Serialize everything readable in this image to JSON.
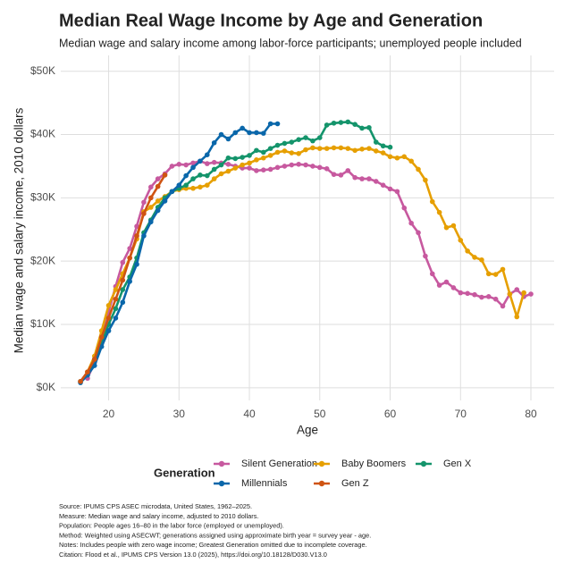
{
  "chart_data": {
    "type": "line",
    "title": "Median Real Wage Income by Age and Generation",
    "subtitle": "Median wage and salary income among labor-force participants; unemployed people included",
    "x_label": "Age",
    "y_label": "Median wage and salary income, 2010 dollars",
    "legend_title": "Generation",
    "xlim": [
      13.2,
      83.3
    ],
    "ylim": [
      -2000,
      52500
    ],
    "xticks": [
      20,
      30,
      40,
      50,
      60,
      70,
      80
    ],
    "yticks": [
      {
        "value": 0,
        "label": "$0K"
      },
      {
        "value": 10000,
        "label": "$10K"
      },
      {
        "value": 20000,
        "label": "$20K"
      },
      {
        "value": 30000,
        "label": "$30K"
      },
      {
        "value": 40000,
        "label": "$40K"
      },
      {
        "value": 50000,
        "label": "$50K"
      }
    ],
    "grid": true,
    "series": [
      {
        "name": "Silent Generation",
        "color": "#c7599f",
        "x": [
          17,
          18,
          19,
          20,
          21,
          22,
          23,
          24,
          25,
          26,
          27,
          28,
          29,
          30,
          31,
          32,
          33,
          34,
          35,
          36,
          37,
          38,
          39,
          40,
          41,
          42,
          43,
          44,
          45,
          46,
          47,
          48,
          49,
          50,
          51,
          52,
          53,
          54,
          55,
          56,
          57,
          58,
          59,
          60,
          61,
          62,
          63,
          64,
          65,
          66,
          67,
          68,
          69,
          70,
          71,
          72,
          73,
          74,
          75,
          76,
          77,
          78,
          79,
          80
        ],
        "values": [
          1500,
          4000,
          8000,
          12000,
          16000,
          19800,
          22000,
          25500,
          29300,
          31700,
          33000,
          33800,
          35000,
          35300,
          35200,
          35500,
          35800,
          35400,
          35600,
          35500,
          35300,
          35000,
          34700,
          34700,
          34300,
          34400,
          34500,
          34800,
          35000,
          35200,
          35300,
          35200,
          35000,
          34800,
          34600,
          33700,
          33600,
          34300,
          33200,
          33000,
          33000,
          32600,
          32000,
          31400,
          31000,
          28400,
          26000,
          24500,
          20800,
          18000,
          16200,
          16700,
          15800,
          15000,
          14900,
          14700,
          14300,
          14400,
          14000,
          12900,
          14800,
          15500,
          14400,
          14800
        ]
      },
      {
        "name": "Baby Boomers",
        "color": "#e69f00",
        "x": [
          17,
          18,
          19,
          20,
          21,
          22,
          23,
          24,
          25,
          26,
          27,
          28,
          29,
          30,
          31,
          32,
          33,
          34,
          35,
          36,
          37,
          38,
          39,
          40,
          41,
          42,
          43,
          44,
          45,
          46,
          47,
          48,
          49,
          50,
          51,
          52,
          53,
          54,
          55,
          56,
          57,
          58,
          59,
          60,
          61,
          62,
          63,
          64,
          65,
          66,
          67,
          68,
          69,
          70,
          71,
          72,
          73,
          74,
          75,
          76,
          77,
          78,
          79
        ],
        "values": [
          2500,
          5000,
          9000,
          13000,
          15500,
          18000,
          20500,
          23500,
          27800,
          28500,
          29500,
          30200,
          31000,
          31300,
          31500,
          31500,
          31700,
          32000,
          33000,
          33800,
          34200,
          34700,
          35200,
          35500,
          36000,
          36300,
          36700,
          37200,
          37400,
          37100,
          37000,
          37600,
          37900,
          37800,
          37800,
          37900,
          37900,
          37800,
          37500,
          37700,
          37800,
          37400,
          37100,
          36500,
          36300,
          36500,
          35800,
          34500,
          32800,
          29400,
          27700,
          25300,
          25600,
          23300,
          21600,
          20600,
          20200,
          18000,
          17900,
          18700,
          14800,
          11200,
          15000
        ]
      },
      {
        "name": "Gen X",
        "color": "#14946b",
        "x": [
          16,
          17,
          18,
          19,
          20,
          21,
          22,
          23,
          24,
          25,
          26,
          27,
          28,
          29,
          30,
          31,
          32,
          33,
          34,
          35,
          36,
          37,
          38,
          39,
          40,
          41,
          42,
          43,
          44,
          45,
          46,
          47,
          48,
          49,
          50,
          51,
          52,
          53,
          54,
          55,
          56,
          57,
          58,
          59,
          60
        ],
        "values": [
          1000,
          2000,
          4500,
          7000,
          10000,
          12500,
          15500,
          17500,
          20500,
          24500,
          26500,
          28500,
          30000,
          31000,
          31500,
          32000,
          33000,
          33600,
          33500,
          34500,
          35200,
          36300,
          36200,
          36400,
          36700,
          37500,
          37200,
          37800,
          38300,
          38600,
          38800,
          39200,
          39500,
          39000,
          39500,
          41500,
          41800,
          41900,
          42000,
          41600,
          41000,
          41100,
          38800,
          38200,
          38000
        ]
      },
      {
        "name": "Millennials",
        "color": "#0a67aa",
        "x": [
          16,
          17,
          18,
          19,
          20,
          21,
          22,
          23,
          24,
          25,
          26,
          27,
          28,
          29,
          30,
          31,
          32,
          33,
          34,
          35,
          36,
          37,
          38,
          39,
          40,
          41,
          42,
          43,
          44
        ],
        "values": [
          800,
          2000,
          3500,
          6500,
          9000,
          11000,
          13500,
          16800,
          19500,
          24000,
          26200,
          28000,
          29500,
          31000,
          32000,
          33500,
          34800,
          35800,
          36800,
          38700,
          40000,
          39300,
          40300,
          41000,
          40300,
          40300,
          40200,
          41700,
          41700
        ]
      },
      {
        "name": "Gen Z",
        "color": "#cf5412",
        "x": [
          16,
          17,
          18,
          19,
          20,
          21,
          22,
          23,
          24,
          25,
          26,
          27,
          28
        ],
        "values": [
          1000,
          2500,
          4500,
          8000,
          11000,
          14000,
          17000,
          20500,
          24000,
          27500,
          30000,
          31800,
          33600
        ]
      }
    ],
    "notes": [
      "Source: IPUMS CPS ASEC microdata, United States, 1962–2025.",
      "Measure: Median wage and salary income, adjusted to 2010 dollars.",
      "Population: People ages 16–80 in the labor force (employed or unemployed).",
      "Method: Weighted using ASECWT; generations assigned using approximate birth year = survey year - age.",
      "Notes: Includes people with zero wage income; Greatest Generation omitted due to incomplete coverage.",
      "Citation: Flood et al., IPUMS CPS Version 13.0 (2025), https://doi.org/10.18128/D030.V13.0"
    ]
  }
}
